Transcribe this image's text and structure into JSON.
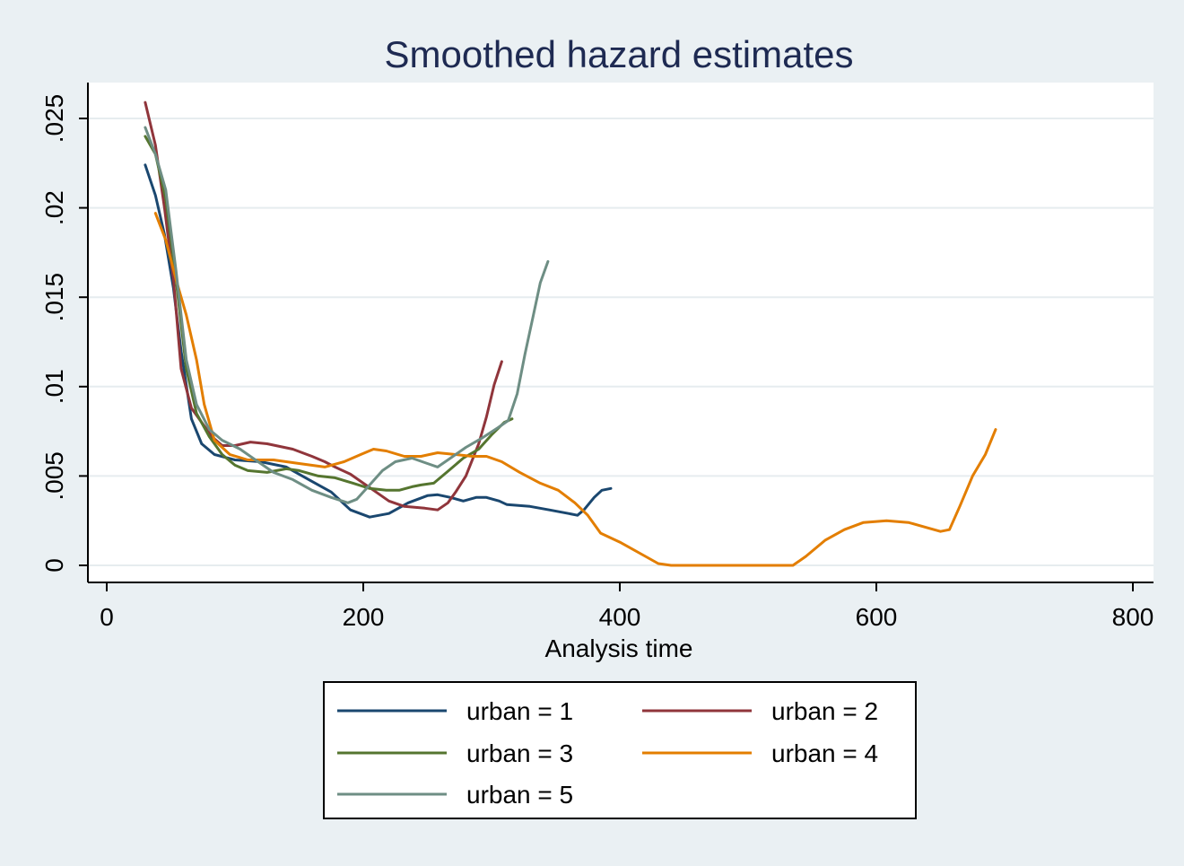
{
  "chart_data": {
    "type": "line",
    "title": "Smoothed hazard estimates",
    "xlabel": "Analysis time",
    "ylabel": "",
    "xlim": [
      0,
      800
    ],
    "ylim": [
      0,
      0.025
    ],
    "x_ticks": [
      0,
      200,
      400,
      600,
      800
    ],
    "x_tick_labels": [
      "0",
      "200",
      "400",
      "600",
      "800"
    ],
    "y_ticks": [
      0,
      0.005,
      0.01,
      0.015,
      0.02,
      0.025
    ],
    "y_tick_labels": [
      "0",
      ".005",
      ".01",
      ".015",
      ".02",
      ".025"
    ],
    "grid": true,
    "legend_position": "bottom",
    "series": [
      {
        "name": "urban = 1",
        "color": "#1a476f",
        "points": [
          [
            30,
            0.0224
          ],
          [
            38,
            0.0207
          ],
          [
            45,
            0.0185
          ],
          [
            52,
            0.0155
          ],
          [
            58,
            0.012
          ],
          [
            66,
            0.0082
          ],
          [
            74,
            0.0068
          ],
          [
            84,
            0.0062
          ],
          [
            100,
            0.0059
          ],
          [
            120,
            0.0058
          ],
          [
            140,
            0.0055
          ],
          [
            160,
            0.0047
          ],
          [
            175,
            0.0041
          ],
          [
            190,
            0.0031
          ],
          [
            205,
            0.0027
          ],
          [
            220,
            0.0029
          ],
          [
            235,
            0.0035
          ],
          [
            250,
            0.0039
          ],
          [
            258,
            0.00395
          ],
          [
            268,
            0.0038
          ],
          [
            278,
            0.0036
          ],
          [
            288,
            0.0038
          ],
          [
            296,
            0.0038
          ],
          [
            306,
            0.0036
          ],
          [
            312,
            0.0034
          ],
          [
            330,
            0.0033
          ],
          [
            345,
            0.0031
          ],
          [
            360,
            0.0029
          ],
          [
            367,
            0.0028
          ],
          [
            372,
            0.0031
          ],
          [
            380,
            0.0038
          ],
          [
            386,
            0.0042
          ],
          [
            393,
            0.0043
          ]
        ]
      },
      {
        "name": "urban = 2",
        "color": "#90353b",
        "points": [
          [
            30,
            0.0259
          ],
          [
            38,
            0.0235
          ],
          [
            45,
            0.02
          ],
          [
            52,
            0.016
          ],
          [
            58,
            0.011
          ],
          [
            66,
            0.0088
          ],
          [
            74,
            0.008
          ],
          [
            82,
            0.0072
          ],
          [
            90,
            0.0067
          ],
          [
            100,
            0.0067
          ],
          [
            112,
            0.0069
          ],
          [
            125,
            0.0068
          ],
          [
            145,
            0.0065
          ],
          [
            160,
            0.0061
          ],
          [
            170,
            0.0058
          ],
          [
            178,
            0.0055
          ],
          [
            190,
            0.0051
          ],
          [
            200,
            0.0046
          ],
          [
            210,
            0.0041
          ],
          [
            220,
            0.0036
          ],
          [
            232,
            0.0033
          ],
          [
            248,
            0.0032
          ],
          [
            258,
            0.0031
          ],
          [
            266,
            0.0035
          ],
          [
            272,
            0.0041
          ],
          [
            280,
            0.005
          ],
          [
            290,
            0.0068
          ],
          [
            296,
            0.0083
          ],
          [
            302,
            0.0101
          ],
          [
            308,
            0.0114
          ]
        ]
      },
      {
        "name": "urban = 3",
        "color": "#55752f",
        "points": [
          [
            30,
            0.024
          ],
          [
            38,
            0.023
          ],
          [
            46,
            0.0205
          ],
          [
            54,
            0.016
          ],
          [
            62,
            0.011
          ],
          [
            70,
            0.0085
          ],
          [
            80,
            0.0072
          ],
          [
            90,
            0.0062
          ],
          [
            100,
            0.0056
          ],
          [
            110,
            0.0053
          ],
          [
            125,
            0.0052
          ],
          [
            140,
            0.0054
          ],
          [
            150,
            0.0053
          ],
          [
            165,
            0.005
          ],
          [
            178,
            0.0049
          ],
          [
            192,
            0.0046
          ],
          [
            205,
            0.0043
          ],
          [
            218,
            0.0042
          ],
          [
            228,
            0.0042
          ],
          [
            238,
            0.0044
          ],
          [
            245,
            0.0045
          ],
          [
            255,
            0.0046
          ],
          [
            265,
            0.0052
          ],
          [
            278,
            0.006
          ],
          [
            290,
            0.0065
          ],
          [
            300,
            0.0073
          ],
          [
            310,
            0.008
          ],
          [
            316,
            0.0082
          ]
        ]
      },
      {
        "name": "urban = 4",
        "color": "#e37e00",
        "points": [
          [
            38,
            0.0197
          ],
          [
            46,
            0.0182
          ],
          [
            54,
            0.016
          ],
          [
            62,
            0.014
          ],
          [
            70,
            0.0115
          ],
          [
            76,
            0.009
          ],
          [
            84,
            0.007
          ],
          [
            96,
            0.0062
          ],
          [
            110,
            0.0059
          ],
          [
            130,
            0.0059
          ],
          [
            150,
            0.0057
          ],
          [
            170,
            0.0055
          ],
          [
            185,
            0.0058
          ],
          [
            198,
            0.0062
          ],
          [
            208,
            0.0065
          ],
          [
            218,
            0.0064
          ],
          [
            232,
            0.0061
          ],
          [
            245,
            0.0061
          ],
          [
            258,
            0.0063
          ],
          [
            272,
            0.0062
          ],
          [
            285,
            0.0061
          ],
          [
            296,
            0.0061
          ],
          [
            308,
            0.0058
          ],
          [
            322,
            0.0052
          ],
          [
            338,
            0.0046
          ],
          [
            352,
            0.0042
          ],
          [
            365,
            0.0035
          ],
          [
            375,
            0.0028
          ],
          [
            385,
            0.0018
          ],
          [
            400,
            0.0013
          ],
          [
            420,
            0.0005
          ],
          [
            430,
            0.0001
          ],
          [
            440,
            0.0
          ],
          [
            480,
            0.0
          ],
          [
            520,
            0.0
          ],
          [
            535,
            0.0
          ],
          [
            545,
            0.0005
          ],
          [
            560,
            0.0014
          ],
          [
            575,
            0.002
          ],
          [
            590,
            0.0024
          ],
          [
            608,
            0.0025
          ],
          [
            625,
            0.0024
          ],
          [
            640,
            0.0021
          ],
          [
            650,
            0.0019
          ],
          [
            657,
            0.002
          ],
          [
            665,
            0.0033
          ],
          [
            675,
            0.005
          ],
          [
            685,
            0.0062
          ],
          [
            693,
            0.0076
          ]
        ]
      },
      {
        "name": "urban = 5",
        "color": "#6e8e84",
        "points": [
          [
            30,
            0.0245
          ],
          [
            38,
            0.023
          ],
          [
            46,
            0.021
          ],
          [
            54,
            0.0165
          ],
          [
            62,
            0.0115
          ],
          [
            70,
            0.009
          ],
          [
            80,
            0.0076
          ],
          [
            90,
            0.007
          ],
          [
            104,
            0.0065
          ],
          [
            118,
            0.0058
          ],
          [
            130,
            0.0052
          ],
          [
            145,
            0.0048
          ],
          [
            160,
            0.0042
          ],
          [
            175,
            0.0038
          ],
          [
            188,
            0.0035
          ],
          [
            195,
            0.0037
          ],
          [
            205,
            0.0045
          ],
          [
            215,
            0.0053
          ],
          [
            225,
            0.0058
          ],
          [
            238,
            0.006
          ],
          [
            250,
            0.0057
          ],
          [
            258,
            0.0055
          ],
          [
            268,
            0.006
          ],
          [
            280,
            0.0066
          ],
          [
            292,
            0.0071
          ],
          [
            305,
            0.0077
          ],
          [
            313,
            0.0081
          ],
          [
            320,
            0.0096
          ],
          [
            326,
            0.0118
          ],
          [
            332,
            0.0138
          ],
          [
            338,
            0.0158
          ],
          [
            344,
            0.017
          ]
        ]
      }
    ]
  }
}
